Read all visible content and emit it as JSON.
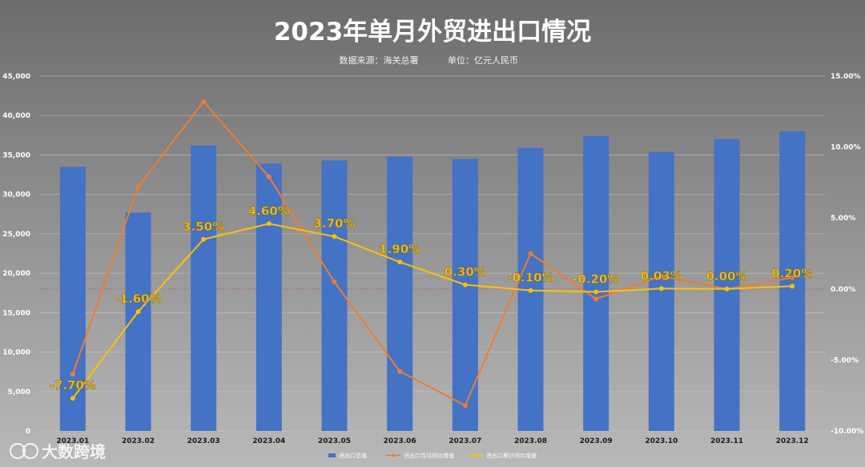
{
  "chart_data": {
    "type": "bar",
    "title": "2023年单月外贸进出口情况",
    "subtitle_source": "数据来源：海关总署",
    "subtitle_unit": "单位：亿元人民币",
    "categories": [
      "2023.01",
      "2023.02",
      "2023.03",
      "2023.04",
      "2023.05",
      "2023.06",
      "2023.07",
      "2023.08",
      "2023.09",
      "2023.10",
      "2023.11",
      "2023.12"
    ],
    "left_axis": {
      "ylim": [
        0,
        45000
      ],
      "ticks": [
        0,
        5000,
        10000,
        15000,
        20000,
        25000,
        30000,
        35000,
        40000,
        45000
      ],
      "tick_labels": [
        "0",
        "5,000",
        "10,000",
        "15,000",
        "20,000",
        "25,000",
        "30,000",
        "35,000",
        "40,000",
        "45,000"
      ]
    },
    "right_axis": {
      "ylim": [
        -10,
        15
      ],
      "ticks": [
        -10,
        -5,
        0,
        5,
        10,
        15
      ],
      "tick_labels": [
        "-10.00%",
        "-5.00%",
        "0.00%",
        "5.00%",
        "10.00%",
        "15.00%"
      ]
    },
    "grid": true,
    "legend_position": "bottom",
    "series": [
      {
        "name": "进出口总值",
        "type": "bar",
        "axis": "left",
        "color": "#4472c4",
        "values": [
          33500,
          27700,
          36200,
          33900,
          34300,
          34800,
          34500,
          35900,
          37400,
          35400,
          37000,
          38000
        ]
      },
      {
        "name": "进出口当月同比增速",
        "type": "line",
        "axis": "right",
        "color": "#ed7d31",
        "values": [
          -6.0,
          7.2,
          13.2,
          7.9,
          0.5,
          -5.8,
          -8.2,
          2.5,
          -0.7,
          0.9,
          0.0,
          0.8
        ]
      },
      {
        "name": "进出口累计同比增速",
        "type": "line",
        "axis": "right",
        "color": "#ffc000",
        "values": [
          -7.7,
          -1.6,
          3.5,
          4.6,
          3.7,
          1.9,
          0.3,
          -0.1,
          -0.2,
          0.03,
          0.0,
          0.2
        ],
        "data_labels": [
          "-7.70%",
          "-1.60%",
          "3.50%",
          "4.60%",
          "3.70%",
          "1.90%",
          "0.30%",
          "-0.10%",
          "-0.20%",
          "0.03%",
          "0.00%",
          "0.20%"
        ]
      }
    ]
  },
  "watermark": {
    "text": "大数跨境",
    "icon": "kuajing-logo-icon"
  }
}
